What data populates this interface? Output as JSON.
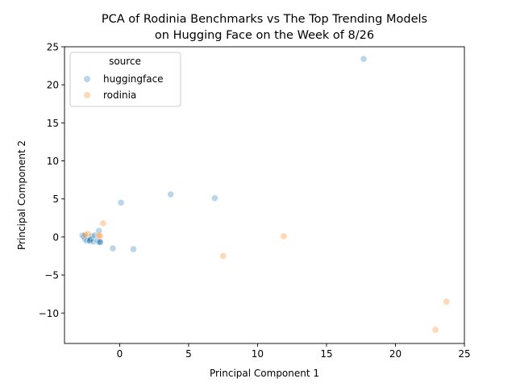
{
  "chart_data": {
    "type": "scatter",
    "title": "PCA of Rodinia Benchmarks vs The Top Trending Models\non Hugging Face on the Week of 8/26",
    "xlabel": "Principal Component 1",
    "ylabel": "Principal Component 2",
    "xlim": [
      -4,
      25
    ],
    "ylim": [
      -14,
      25
    ],
    "xticks": [
      0,
      5,
      10,
      15,
      20,
      25
    ],
    "yticks": [
      -10,
      -5,
      0,
      5,
      10,
      15,
      20,
      25
    ],
    "grid": false,
    "legend": {
      "title": "source",
      "placement": "top-left"
    },
    "series": [
      {
        "name": "huggingface",
        "color": "#1f77b4",
        "opacity": 0.3,
        "points": [
          [
            17.7,
            23.4
          ],
          [
            3.7,
            5.6
          ],
          [
            6.9,
            5.1
          ],
          [
            0.1,
            4.5
          ],
          [
            -0.5,
            -1.5
          ],
          [
            1.0,
            -1.6
          ],
          [
            -2.7,
            0.2
          ],
          [
            -2.6,
            0.1
          ],
          [
            -2.5,
            -0.3
          ],
          [
            -2.4,
            -0.5
          ],
          [
            -2.3,
            -0.4
          ],
          [
            -2.2,
            -0.5
          ],
          [
            -2.2,
            -0.4
          ],
          [
            -2.15,
            -0.5
          ],
          [
            -2.1,
            -0.3
          ],
          [
            -2.0,
            0.1
          ],
          [
            -1.9,
            -0.6
          ],
          [
            -1.8,
            0.2
          ],
          [
            -1.6,
            -0.5
          ],
          [
            -1.5,
            -0.7
          ],
          [
            -1.5,
            0.8
          ],
          [
            -1.45,
            -0.6
          ],
          [
            -1.4,
            -0.7
          ]
        ]
      },
      {
        "name": "rodinia",
        "color": "#ff7f0e",
        "opacity": 0.3,
        "points": [
          [
            23.7,
            -8.5
          ],
          [
            22.9,
            -12.2
          ],
          [
            11.9,
            0.1
          ],
          [
            7.5,
            -2.5
          ],
          [
            -1.2,
            1.8
          ],
          [
            -1.4,
            0.1
          ],
          [
            -1.5,
            0.2
          ],
          [
            -2.3,
            0.4
          ],
          [
            -2.5,
            0.3
          ]
        ]
      }
    ]
  }
}
